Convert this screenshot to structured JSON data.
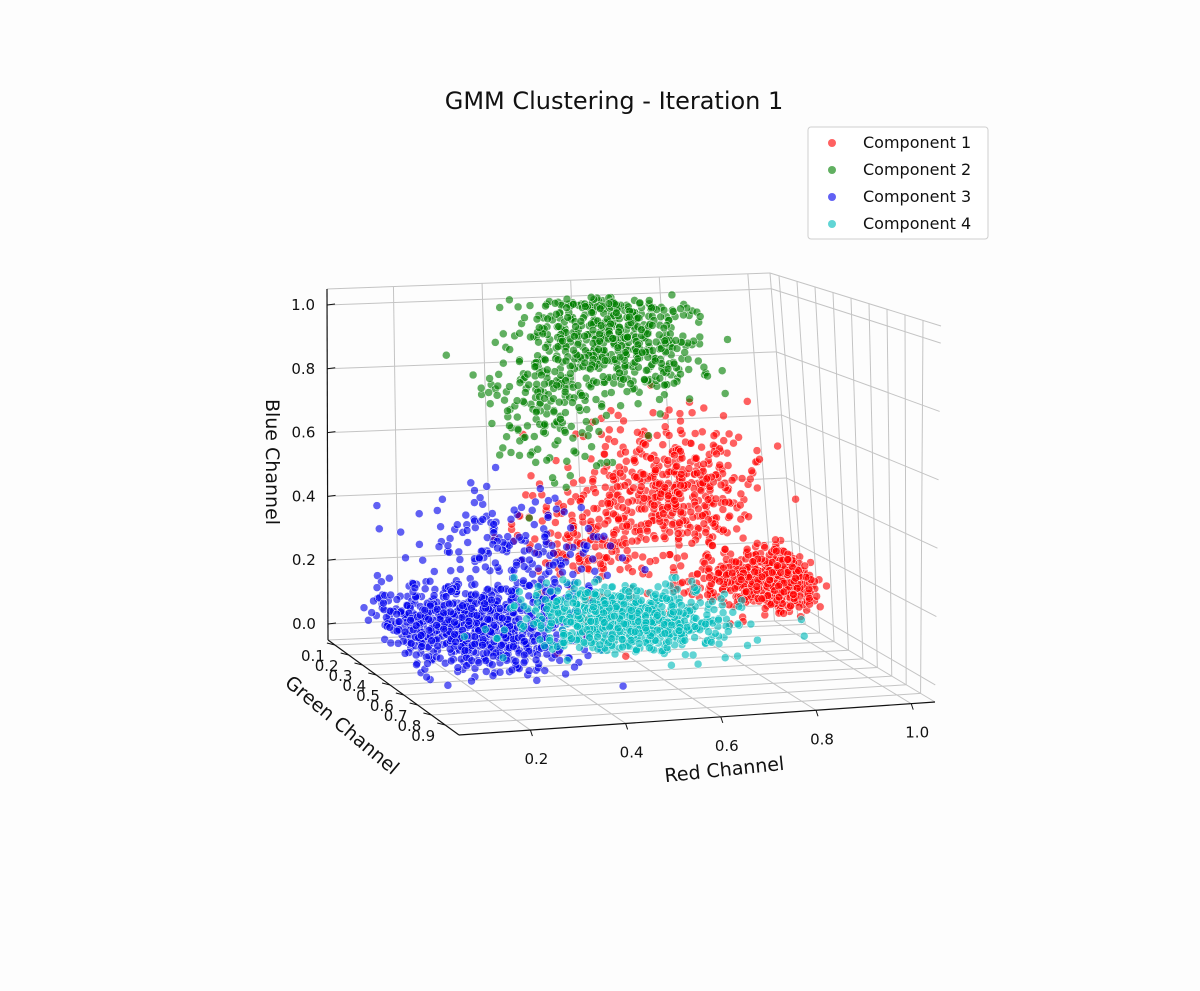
{
  "chart_data": {
    "type": "scatter",
    "projection": "3d",
    "title": "GMM Clustering - Iteration 1",
    "xlabel": "Red Channel",
    "ylabel": "Green Channel",
    "zlabel": "Blue Channel",
    "x_ticks": [
      "0.2",
      "0.4",
      "0.6",
      "0.8",
      "1.0"
    ],
    "y_ticks": [
      "0.9",
      "0.8",
      "0.7",
      "0.6",
      "0.5",
      "0.4",
      "0.3",
      "0.2",
      "0.1"
    ],
    "z_ticks": [
      "0.0",
      "0.2",
      "0.4",
      "0.6",
      "0.8",
      "1.0"
    ],
    "xlim": [
      0.05,
      1.05
    ],
    "ylim": [
      0.05,
      1.0
    ],
    "zlim": [
      -0.05,
      1.05
    ],
    "grid": true,
    "legend_position": "top-right",
    "series": [
      {
        "name": "Component 1",
        "color": "#ff0000",
        "clusters": [
          {
            "center": [
              0.72,
              0.35,
              0.45
            ],
            "spread": [
              0.08,
              0.1,
              0.1
            ],
            "count": 430
          },
          {
            "center": [
              0.95,
              0.2,
              0.12
            ],
            "spread": [
              0.07,
              0.08,
              0.04
            ],
            "count": 620
          },
          {
            "center": [
              0.5,
              0.55,
              0.35
            ],
            "spread": [
              0.07,
              0.1,
              0.1
            ],
            "count": 200
          }
        ]
      },
      {
        "name": "Component 2",
        "color": "#008000",
        "clusters": [
          {
            "center": [
              0.62,
              0.35,
              0.9
            ],
            "spread": [
              0.08,
              0.15,
              0.09
            ],
            "count": 520
          },
          {
            "center": [
              0.45,
              0.45,
              0.72
            ],
            "spread": [
              0.06,
              0.12,
              0.1
            ],
            "count": 170
          }
        ]
      },
      {
        "name": "Component 3",
        "color": "#0000ee",
        "clusters": [
          {
            "center": [
              0.25,
              0.45,
              0.08
            ],
            "spread": [
              0.09,
              0.15,
              0.05
            ],
            "count": 750
          },
          {
            "center": [
              0.32,
              0.6,
              0.3
            ],
            "spread": [
              0.09,
              0.15,
              0.09
            ],
            "count": 230
          }
        ]
      },
      {
        "name": "Component 4",
        "color": "#00bbbb",
        "clusters": [
          {
            "center": [
              0.6,
              0.35,
              0.06
            ],
            "spread": [
              0.1,
              0.12,
              0.035
            ],
            "count": 780
          }
        ]
      }
    ]
  }
}
